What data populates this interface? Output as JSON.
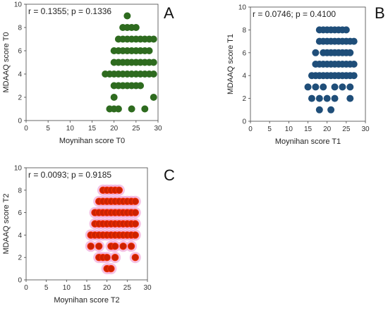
{
  "chart_data": [
    {
      "panel": "A",
      "type": "scatter",
      "stats": "r = 0.1355; p = 0.1336",
      "xlabel": "Moynihan score T0",
      "ylabel": "MDAAQ score T0",
      "xlim": [
        0,
        30
      ],
      "ylim": [
        0,
        10
      ],
      "xticks": [
        0,
        5,
        10,
        15,
        20,
        25,
        30
      ],
      "yticks": [
        0,
        2,
        4,
        6,
        8,
        10
      ],
      "color": "#2e6b1f",
      "points": [
        [
          18,
          4
        ],
        [
          19,
          1
        ],
        [
          20,
          1
        ],
        [
          21,
          1
        ],
        [
          24,
          1
        ],
        [
          27,
          1
        ],
        [
          29,
          2
        ],
        [
          20,
          2
        ],
        [
          20,
          3
        ],
        [
          21,
          3
        ],
        [
          22,
          3
        ],
        [
          23,
          3
        ],
        [
          24,
          3
        ],
        [
          25,
          3
        ],
        [
          26,
          3
        ],
        [
          19,
          4
        ],
        [
          20,
          4
        ],
        [
          21,
          4
        ],
        [
          22,
          4
        ],
        [
          23,
          4
        ],
        [
          24,
          4
        ],
        [
          25,
          4
        ],
        [
          26,
          4
        ],
        [
          27,
          4
        ],
        [
          28,
          4
        ],
        [
          29,
          4
        ],
        [
          20,
          5
        ],
        [
          21,
          5
        ],
        [
          22,
          5
        ],
        [
          23,
          5
        ],
        [
          24,
          5
        ],
        [
          25,
          5
        ],
        [
          26,
          5
        ],
        [
          27,
          5
        ],
        [
          28,
          5
        ],
        [
          29,
          5
        ],
        [
          20,
          6
        ],
        [
          21,
          6
        ],
        [
          22,
          6
        ],
        [
          23,
          6
        ],
        [
          24,
          6
        ],
        [
          25,
          6
        ],
        [
          26,
          6
        ],
        [
          27,
          6
        ],
        [
          28,
          6
        ],
        [
          21,
          7
        ],
        [
          22,
          7
        ],
        [
          23,
          7
        ],
        [
          24,
          7
        ],
        [
          25,
          7
        ],
        [
          26,
          7
        ],
        [
          27,
          7
        ],
        [
          28,
          7
        ],
        [
          29,
          7
        ],
        [
          22,
          8
        ],
        [
          23,
          8
        ],
        [
          24,
          8
        ],
        [
          25,
          8
        ],
        [
          23,
          9
        ]
      ]
    },
    {
      "panel": "B",
      "type": "scatter",
      "stats": "r = 0.0746; p = 0.4100",
      "xlabel": "Moynihan score T1",
      "ylabel": "MDAAQ score T1",
      "xlim": [
        0,
        30
      ],
      "ylim": [
        0,
        10
      ],
      "xticks": [
        0,
        5,
        10,
        15,
        20,
        25,
        30
      ],
      "yticks": [
        0,
        2,
        4,
        6,
        8,
        10
      ],
      "color": "#1f4e79",
      "points": [
        [
          18,
          1
        ],
        [
          21,
          1
        ],
        [
          16,
          2
        ],
        [
          18,
          2
        ],
        [
          20,
          2
        ],
        [
          22,
          2
        ],
        [
          26,
          2
        ],
        [
          15,
          3
        ],
        [
          17,
          3
        ],
        [
          19,
          3
        ],
        [
          22,
          3
        ],
        [
          24,
          3
        ],
        [
          26,
          3
        ],
        [
          16,
          4
        ],
        [
          17,
          4
        ],
        [
          18,
          4
        ],
        [
          19,
          4
        ],
        [
          20,
          4
        ],
        [
          21,
          4
        ],
        [
          22,
          4
        ],
        [
          23,
          4
        ],
        [
          24,
          4
        ],
        [
          25,
          4
        ],
        [
          26,
          4
        ],
        [
          27,
          4
        ],
        [
          17,
          5
        ],
        [
          18,
          5
        ],
        [
          19,
          5
        ],
        [
          20,
          5
        ],
        [
          21,
          5
        ],
        [
          22,
          5
        ],
        [
          23,
          5
        ],
        [
          24,
          5
        ],
        [
          25,
          5
        ],
        [
          26,
          5
        ],
        [
          27,
          5
        ],
        [
          17,
          6
        ],
        [
          19,
          6
        ],
        [
          20,
          6
        ],
        [
          21,
          6
        ],
        [
          22,
          6
        ],
        [
          23,
          6
        ],
        [
          24,
          6
        ],
        [
          25,
          6
        ],
        [
          26,
          6
        ],
        [
          18,
          7
        ],
        [
          19,
          7
        ],
        [
          20,
          7
        ],
        [
          21,
          7
        ],
        [
          22,
          7
        ],
        [
          23,
          7
        ],
        [
          24,
          7
        ],
        [
          25,
          7
        ],
        [
          26,
          7
        ],
        [
          27,
          7
        ],
        [
          18,
          8
        ],
        [
          19,
          8
        ],
        [
          20,
          8
        ],
        [
          21,
          8
        ],
        [
          22,
          8
        ],
        [
          23,
          8
        ],
        [
          24,
          8
        ],
        [
          25,
          8
        ]
      ]
    },
    {
      "panel": "C",
      "type": "scatter",
      "stats": "r = 0.0093; p = 0.9185",
      "xlabel": "Moynihan score T2",
      "ylabel": "MDAAQ score T2",
      "xlim": [
        0,
        30
      ],
      "ylim": [
        0,
        10
      ],
      "xticks": [
        0,
        5,
        10,
        15,
        20,
        25,
        30
      ],
      "yticks": [
        0,
        2,
        4,
        6,
        8,
        10
      ],
      "color": "#cc2200",
      "edge": "#ff3300",
      "halo": "#f0a8d8",
      "points": [
        [
          20,
          1
        ],
        [
          21,
          1
        ],
        [
          18,
          2
        ],
        [
          19,
          2
        ],
        [
          20,
          2
        ],
        [
          22,
          2
        ],
        [
          27,
          2
        ],
        [
          16,
          3
        ],
        [
          18,
          3
        ],
        [
          21,
          3
        ],
        [
          22,
          3
        ],
        [
          24,
          3
        ],
        [
          26,
          3
        ],
        [
          16,
          4
        ],
        [
          17,
          4
        ],
        [
          18,
          4
        ],
        [
          19,
          4
        ],
        [
          20,
          4
        ],
        [
          21,
          4
        ],
        [
          22,
          4
        ],
        [
          23,
          4
        ],
        [
          24,
          4
        ],
        [
          25,
          4
        ],
        [
          26,
          4
        ],
        [
          27,
          4
        ],
        [
          17,
          5
        ],
        [
          18,
          5
        ],
        [
          19,
          5
        ],
        [
          20,
          5
        ],
        [
          21,
          5
        ],
        [
          22,
          5
        ],
        [
          23,
          5
        ],
        [
          24,
          5
        ],
        [
          25,
          5
        ],
        [
          26,
          5
        ],
        [
          27,
          5
        ],
        [
          17,
          6
        ],
        [
          18,
          6
        ],
        [
          19,
          6
        ],
        [
          20,
          6
        ],
        [
          21,
          6
        ],
        [
          22,
          6
        ],
        [
          23,
          6
        ],
        [
          24,
          6
        ],
        [
          25,
          6
        ],
        [
          26,
          6
        ],
        [
          27,
          6
        ],
        [
          18,
          7
        ],
        [
          19,
          7
        ],
        [
          20,
          7
        ],
        [
          21,
          7
        ],
        [
          22,
          7
        ],
        [
          23,
          7
        ],
        [
          24,
          7
        ],
        [
          25,
          7
        ],
        [
          26,
          7
        ],
        [
          27,
          7
        ],
        [
          19,
          8
        ],
        [
          20,
          8
        ],
        [
          21,
          8
        ],
        [
          22,
          8
        ],
        [
          23,
          8
        ]
      ]
    }
  ]
}
